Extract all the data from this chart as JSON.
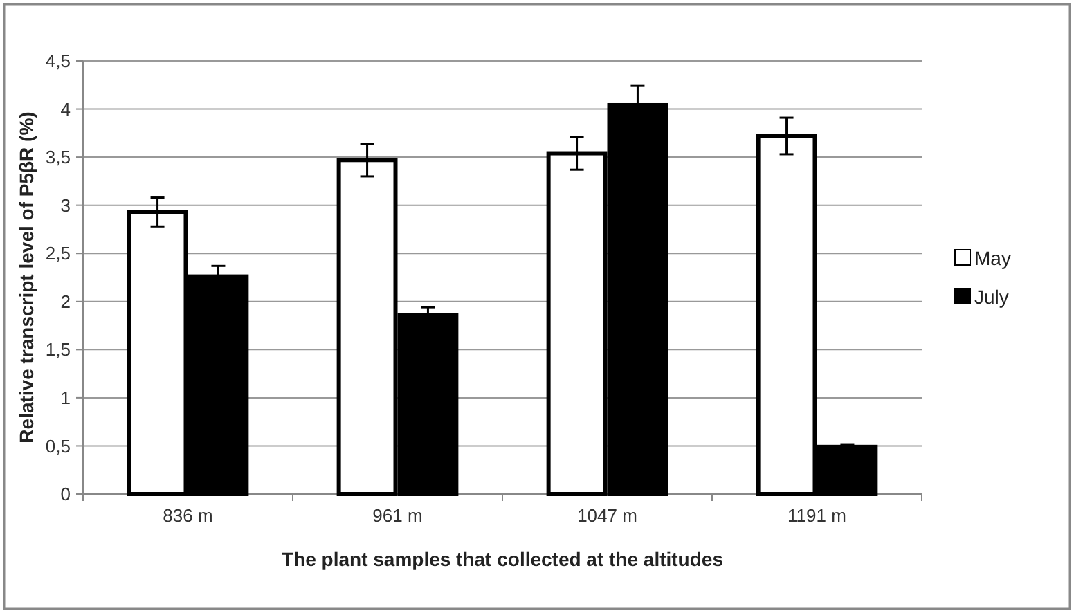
{
  "chart_data": {
    "type": "bar",
    "xlabel": "The plant samples that collected at the altitudes",
    "ylabel": "Relative transcript level of P5βR  (%)",
    "categories": [
      "836 m",
      "961 m",
      "1047 m",
      "1191 m"
    ],
    "series": [
      {
        "name": "May",
        "color": "#ffffff",
        "values": [
          2.93,
          3.47,
          3.54,
          3.72
        ],
        "errors": [
          0.15,
          0.17,
          0.17,
          0.19
        ]
      },
      {
        "name": "July",
        "color": "#000000",
        "values": [
          2.26,
          1.86,
          4.04,
          0.49
        ],
        "errors": [
          0.11,
          0.08,
          0.2,
          0.02
        ]
      }
    ],
    "ylim": [
      0,
      4.5
    ],
    "yticks": [
      0,
      {
        "value": 0.5,
        "label": "0,5"
      },
      1,
      {
        "value": 1.5,
        "label": "1,5"
      },
      2,
      {
        "value": 2.5,
        "label": "2,5"
      },
      3,
      {
        "value": 3.5,
        "label": "3,5"
      },
      4,
      {
        "value": 4.5,
        "label": "4,5"
      }
    ],
    "grid": "y",
    "legend": "right"
  }
}
